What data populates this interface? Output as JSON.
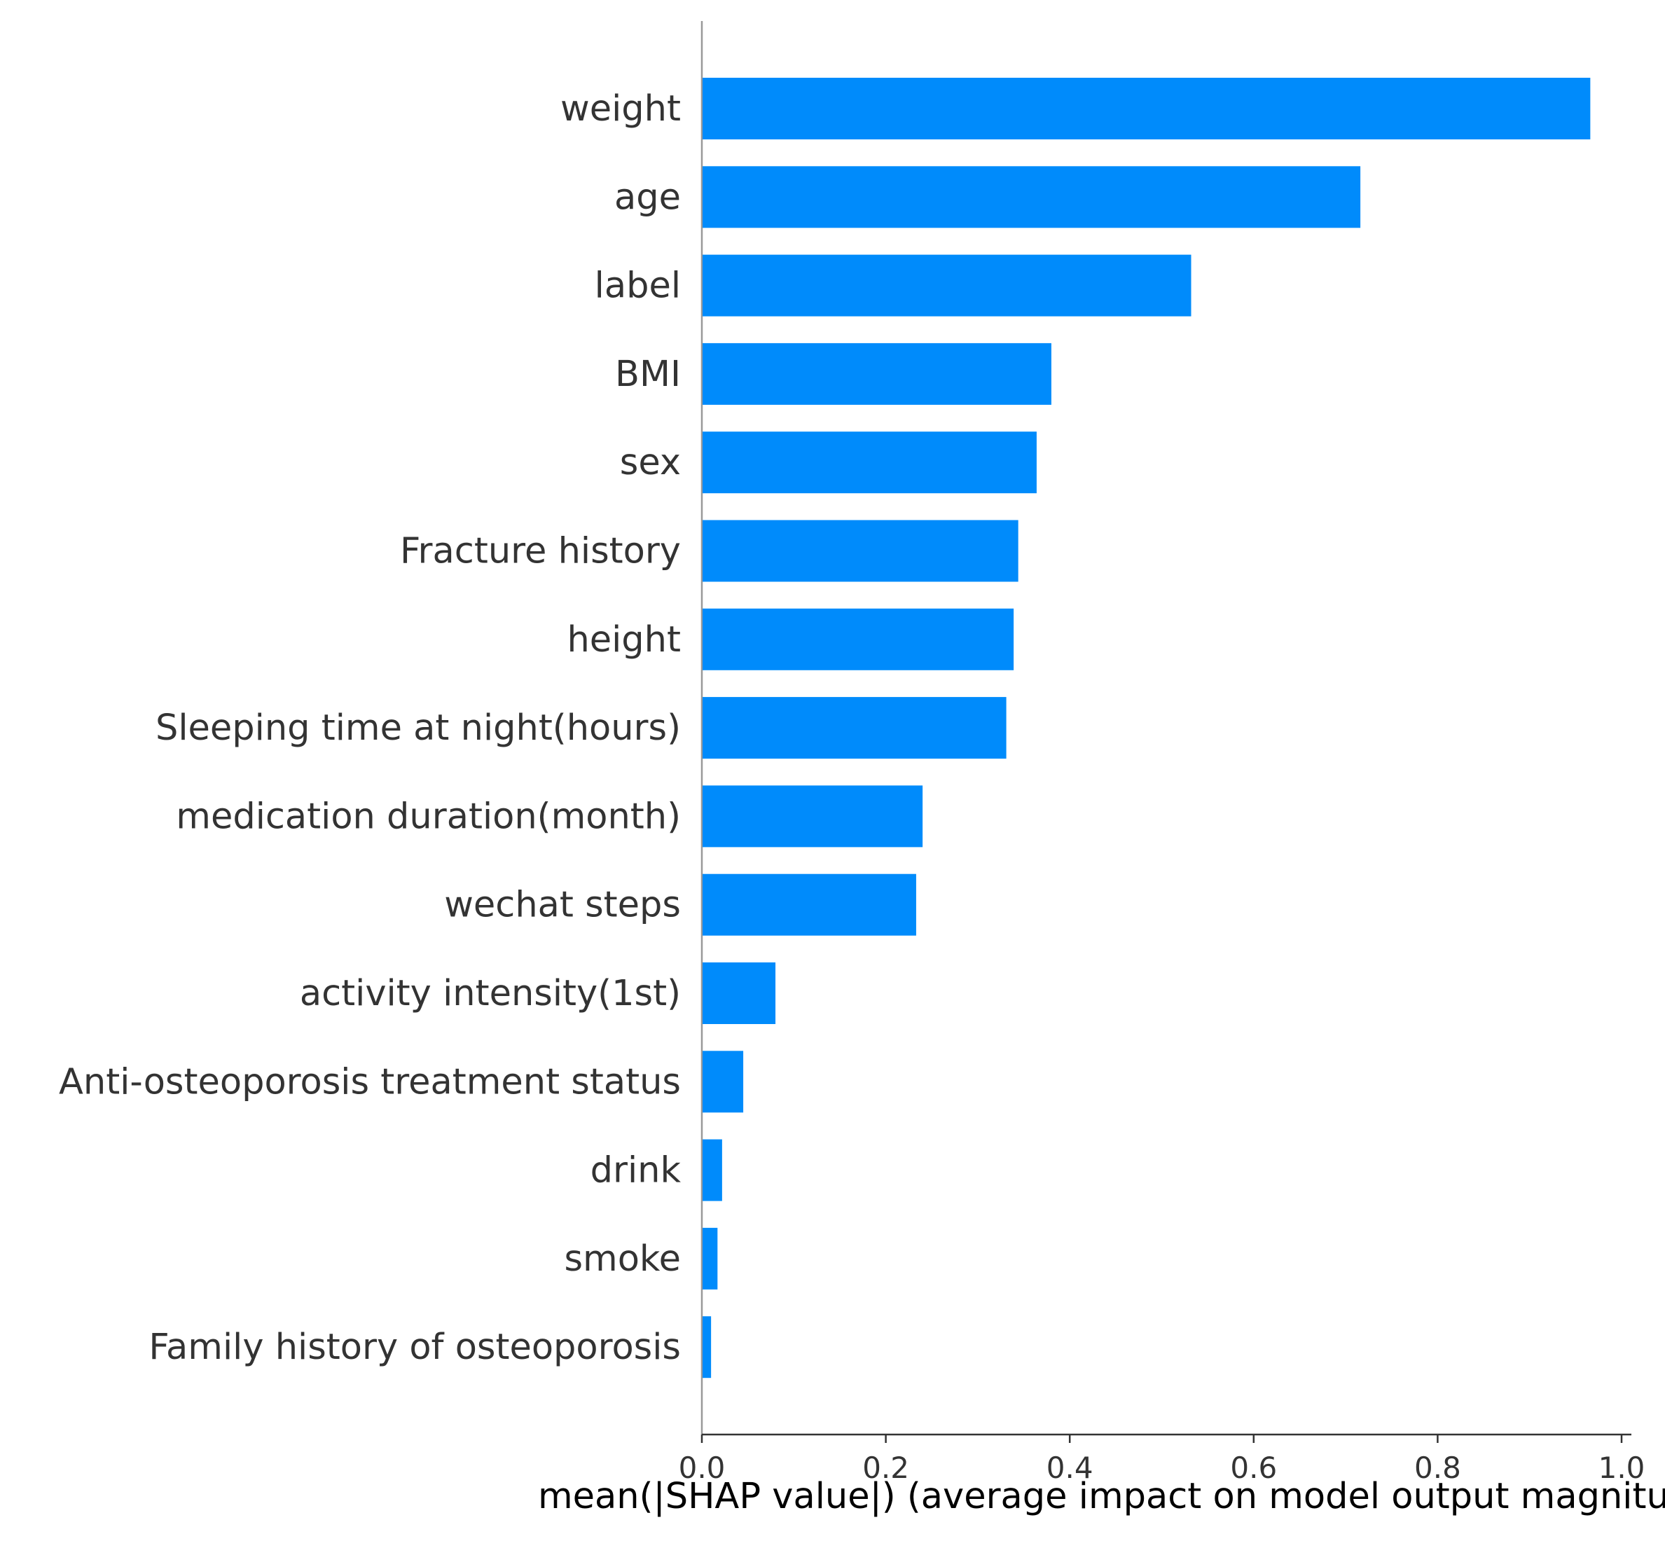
{
  "chart_data": {
    "type": "bar",
    "orientation": "horizontal",
    "categories": [
      "weight",
      "age",
      "label",
      "BMI",
      "sex",
      "Fracture history",
      "height",
      "Sleeping time at night(hours)",
      "medication duration(month)",
      "wechat steps",
      "activity intensity(1st)",
      "Anti-osteoporosis treatment status",
      "drink",
      "smoke",
      "Family history of osteoporosis"
    ],
    "values": [
      0.966,
      0.716,
      0.532,
      0.38,
      0.364,
      0.344,
      0.339,
      0.331,
      0.24,
      0.233,
      0.08,
      0.045,
      0.022,
      0.017,
      0.01
    ],
    "xlabel": "mean(|SHAP value|) (average impact on model output magnitude)",
    "ylabel": "",
    "title": "",
    "xlim": [
      0.0,
      1.0
    ],
    "xticks": [
      "0.0",
      "0.2",
      "0.4",
      "0.6",
      "0.8",
      "1.0"
    ],
    "bar_color": "#008bfb",
    "axis_color": "#333333",
    "grid": false
  }
}
